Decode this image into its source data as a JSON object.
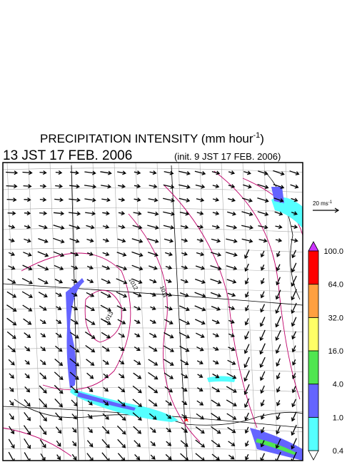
{
  "header": {
    "title": "PRECIPITATION INTENSITY (mm hour",
    "title_sup": "-1",
    "title_end": ")",
    "time": "13 JST 17 FEB. 2006",
    "init": "(init. 9 JST 17 FEB. 2006)"
  },
  "wind_reference": {
    "label": "20 ms",
    "sup": "-1"
  },
  "contour_labels": [
    "1012",
    "1011",
    "1013"
  ],
  "colorbar": {
    "labels": [
      "0.4",
      "1.0",
      "4.0",
      "16.0",
      "32.0",
      "64.0",
      "100.0"
    ],
    "colors": [
      "#55ffff",
      "#6464ff",
      "#50e650",
      "#ffff66",
      "#ffa040",
      "#ff0000"
    ],
    "over_color": "#cc33ff",
    "under_color": "#ffffff"
  }
}
